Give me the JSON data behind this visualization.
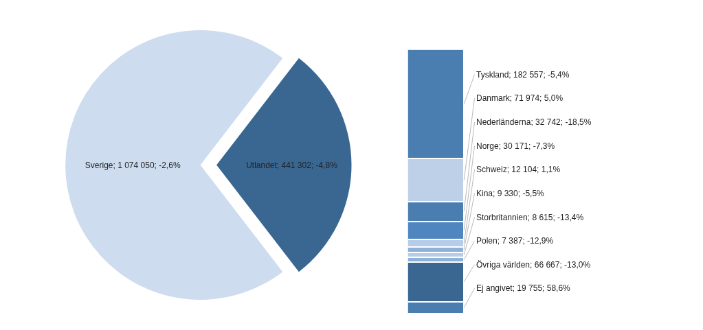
{
  "chart_data": [
    {
      "type": "pie",
      "categories": [
        "Sverige",
        "Utlandet"
      ],
      "values": [
        1074050,
        441302
      ],
      "colors": [
        "#cddcef",
        "#3a6791"
      ],
      "value_labels": [
        "1 074 050; -2,6%",
        "441 302; -4,8%"
      ]
    },
    {
      "type": "bar",
      "stacked": true,
      "categories": [
        null
      ],
      "series": [
        {
          "color": "#4a7eb1",
          "values": [
            19755
          ],
          "value_labels": [
            "Ej angivet; 19 755; 58,6%"
          ]
        },
        {
          "color": "#3a6791",
          "values": [
            66667
          ],
          "value_labels": [
            "Övriga världen; 66 667; -13,0%"
          ]
        },
        {
          "color": "#8eb1da",
          "values": [
            7387
          ],
          "value_labels": [
            "Polen; 7 387; -12,9%"
          ]
        },
        {
          "color": "#b7cce6",
          "values": [
            8615
          ],
          "value_labels": [
            "Storbritannien; 8 615; -13,4%"
          ]
        },
        {
          "color": "#8eb1da",
          "values": [
            9330
          ],
          "value_labels": [
            "Kina; 9 330; -5,5%"
          ]
        },
        {
          "color": "#b7cce6",
          "values": [
            12104
          ],
          "value_labels": [
            "Schweiz; 12 104; 1,1%"
          ]
        },
        {
          "color": "#4f86c0",
          "values": [
            30171
          ],
          "value_labels": [
            "Norge; 30 171; -7,3%"
          ]
        },
        {
          "color": "#4a7eb1",
          "values": [
            32742
          ],
          "value_labels": [
            "Nederländerna; 32 742; -18,5%"
          ]
        },
        {
          "color": "#bdd0e8",
          "values": [
            71974
          ],
          "value_labels": [
            "Danmark; 71 974; 5,0%"
          ]
        },
        {
          "color": "#4a7eb1",
          "values": [
            182557
          ],
          "value_labels": [
            "Tyskland; 182 557; -5,4%"
          ]
        }
      ]
    }
  ]
}
